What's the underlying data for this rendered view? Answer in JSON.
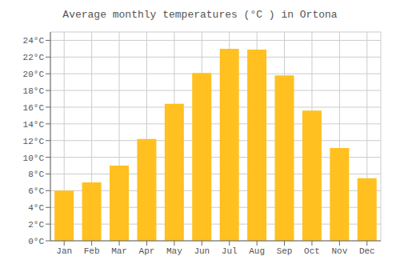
{
  "chart_data": {
    "type": "bar",
    "title": "Average monthly temperatures (°C ) in Ortona",
    "categories": [
      "Jan",
      "Feb",
      "Mar",
      "Apr",
      "May",
      "Jun",
      "Jul",
      "Aug",
      "Sep",
      "Oct",
      "Nov",
      "Dec"
    ],
    "values": [
      6.0,
      7.0,
      9.0,
      12.2,
      16.4,
      20.1,
      23.0,
      22.9,
      19.8,
      15.6,
      11.1,
      7.5
    ],
    "color": "#FFC020",
    "ylim": [
      0,
      25
    ],
    "yticks": [
      {
        "value": 0,
        "label": "0°C"
      },
      {
        "value": 2,
        "label": "2°C"
      },
      {
        "value": 4,
        "label": "4°C"
      },
      {
        "value": 6,
        "label": "6°C"
      },
      {
        "value": 8,
        "label": "8°C"
      },
      {
        "value": 10,
        "label": "10°C"
      },
      {
        "value": 12,
        "label": "12°C"
      },
      {
        "value": 14,
        "label": "14°C"
      },
      {
        "value": 16,
        "label": "16°C"
      },
      {
        "value": 18,
        "label": "18°C"
      },
      {
        "value": 20,
        "label": "20°C"
      },
      {
        "value": 22,
        "label": "22°C"
      },
      {
        "value": 24,
        "label": "24°C"
      }
    ],
    "grid": true
  }
}
